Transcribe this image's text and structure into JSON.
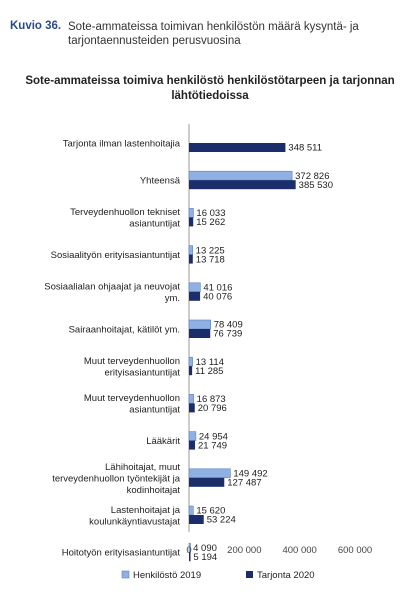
{
  "figure": {
    "number": "Kuvio 36.",
    "caption": "Sote-ammateissa toimivan henkilöstön määrä kysyntä- ja tarjontaennusteiden perusvuosina"
  },
  "chart_data": {
    "type": "bar",
    "orientation": "horizontal",
    "title": "Sote-ammateissa toimiva henkilöstö henkilöstötarpeen ja tarjonnan lähtötiedoissa",
    "categories": [
      "Tarjonta ilman lastenhoitajia",
      "Yhteensä",
      "Terveydenhuollon tekniset asiantuntijat",
      "Sosiaalityön erityisasiantuntijat",
      "Sosiaalialan ohjaajat ja neuvojat ym.",
      "Sairaanhoitajat, kätilöt ym.",
      "Muut terveydenhuollon erityisasiantuntijat",
      "Muut terveydenhuollon asiantuntijat",
      "Lääkärit",
      "Lähihoitajat, muut terveydenhuollon työntekijät ja kodinhoitajat",
      "Lastenhoitajat ja koulunkäyntiavustajat",
      "Hoitotyön erityisasiantuntijat"
    ],
    "series": [
      {
        "name": "Henkilöstö 2019",
        "color": "#8fb0e3",
        "values": [
          null,
          372826,
          16033,
          13225,
          41016,
          78409,
          13114,
          16873,
          24954,
          149492,
          15620,
          4090
        ],
        "labels": [
          "",
          "372 826",
          "16 033",
          "13 225",
          "41 016",
          "78 409",
          "13 114",
          "16 873",
          "24 954",
          "149 492",
          "15 620",
          "4 090"
        ]
      },
      {
        "name": "Tarjonta 2020",
        "color": "#1c2d6b",
        "values": [
          348511,
          385530,
          15262,
          13718,
          40076,
          76739,
          11285,
          20796,
          21749,
          127487,
          53224,
          5194
        ],
        "labels": [
          "348 511",
          "385 530",
          "15 262",
          "13 718",
          "40 076",
          "76 739",
          "11 285",
          "20 796",
          "21 749",
          "127 487",
          "53 224",
          "5 194"
        ]
      }
    ],
    "xlim": [
      0,
      600000
    ],
    "xticks": [
      0,
      200000,
      400000,
      600000
    ],
    "xtick_labels": [
      "0",
      "200 000",
      "400 000",
      "600 000"
    ],
    "legend_position": "bottom",
    "grid": false
  }
}
